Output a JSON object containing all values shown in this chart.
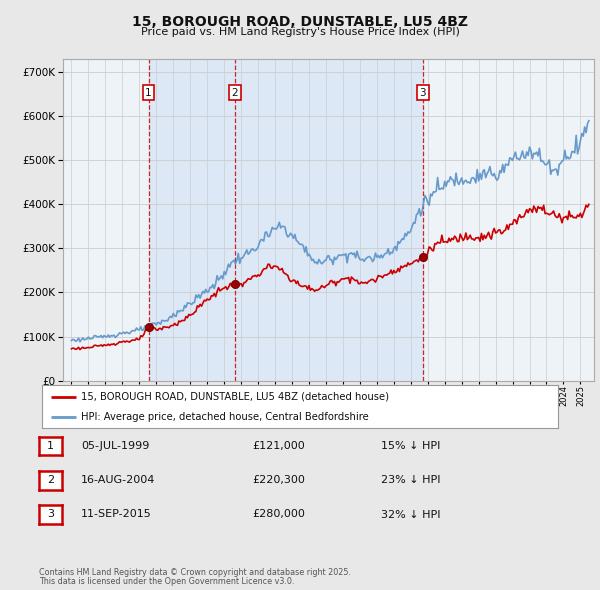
{
  "title1": "15, BOROUGH ROAD, DUNSTABLE, LU5 4BZ",
  "title2": "Price paid vs. HM Land Registry's House Price Index (HPI)",
  "legend_label_red": "15, BOROUGH ROAD, DUNSTABLE, LU5 4BZ (detached house)",
  "legend_label_blue": "HPI: Average price, detached house, Central Bedfordshire",
  "footer1": "Contains HM Land Registry data © Crown copyright and database right 2025.",
  "footer2": "This data is licensed under the Open Government Licence v3.0.",
  "transactions": [
    {
      "num": 1,
      "date": "05-JUL-1999",
      "price": "£121,000",
      "pct": "15% ↓ HPI",
      "year": 1999.54
    },
    {
      "num": 2,
      "date": "16-AUG-2004",
      "price": "£220,300",
      "pct": "23% ↓ HPI",
      "year": 2004.63
    },
    {
      "num": 3,
      "date": "11-SEP-2015",
      "price": "£280,000",
      "pct": "32% ↓ HPI",
      "year": 2015.71
    }
  ],
  "ylim": [
    0,
    730000
  ],
  "yticks": [
    0,
    100000,
    200000,
    300000,
    400000,
    500000,
    600000,
    700000
  ],
  "xlim_left": 1994.5,
  "xlim_right": 2025.8,
  "background_color": "#e8e8e8",
  "plot_bg": "#eef3f8",
  "shade_color": "#dce8f5",
  "red_color": "#cc0000",
  "blue_color": "#6699cc",
  "grid_color": "#cccccc",
  "vline_color": "#cc0000"
}
